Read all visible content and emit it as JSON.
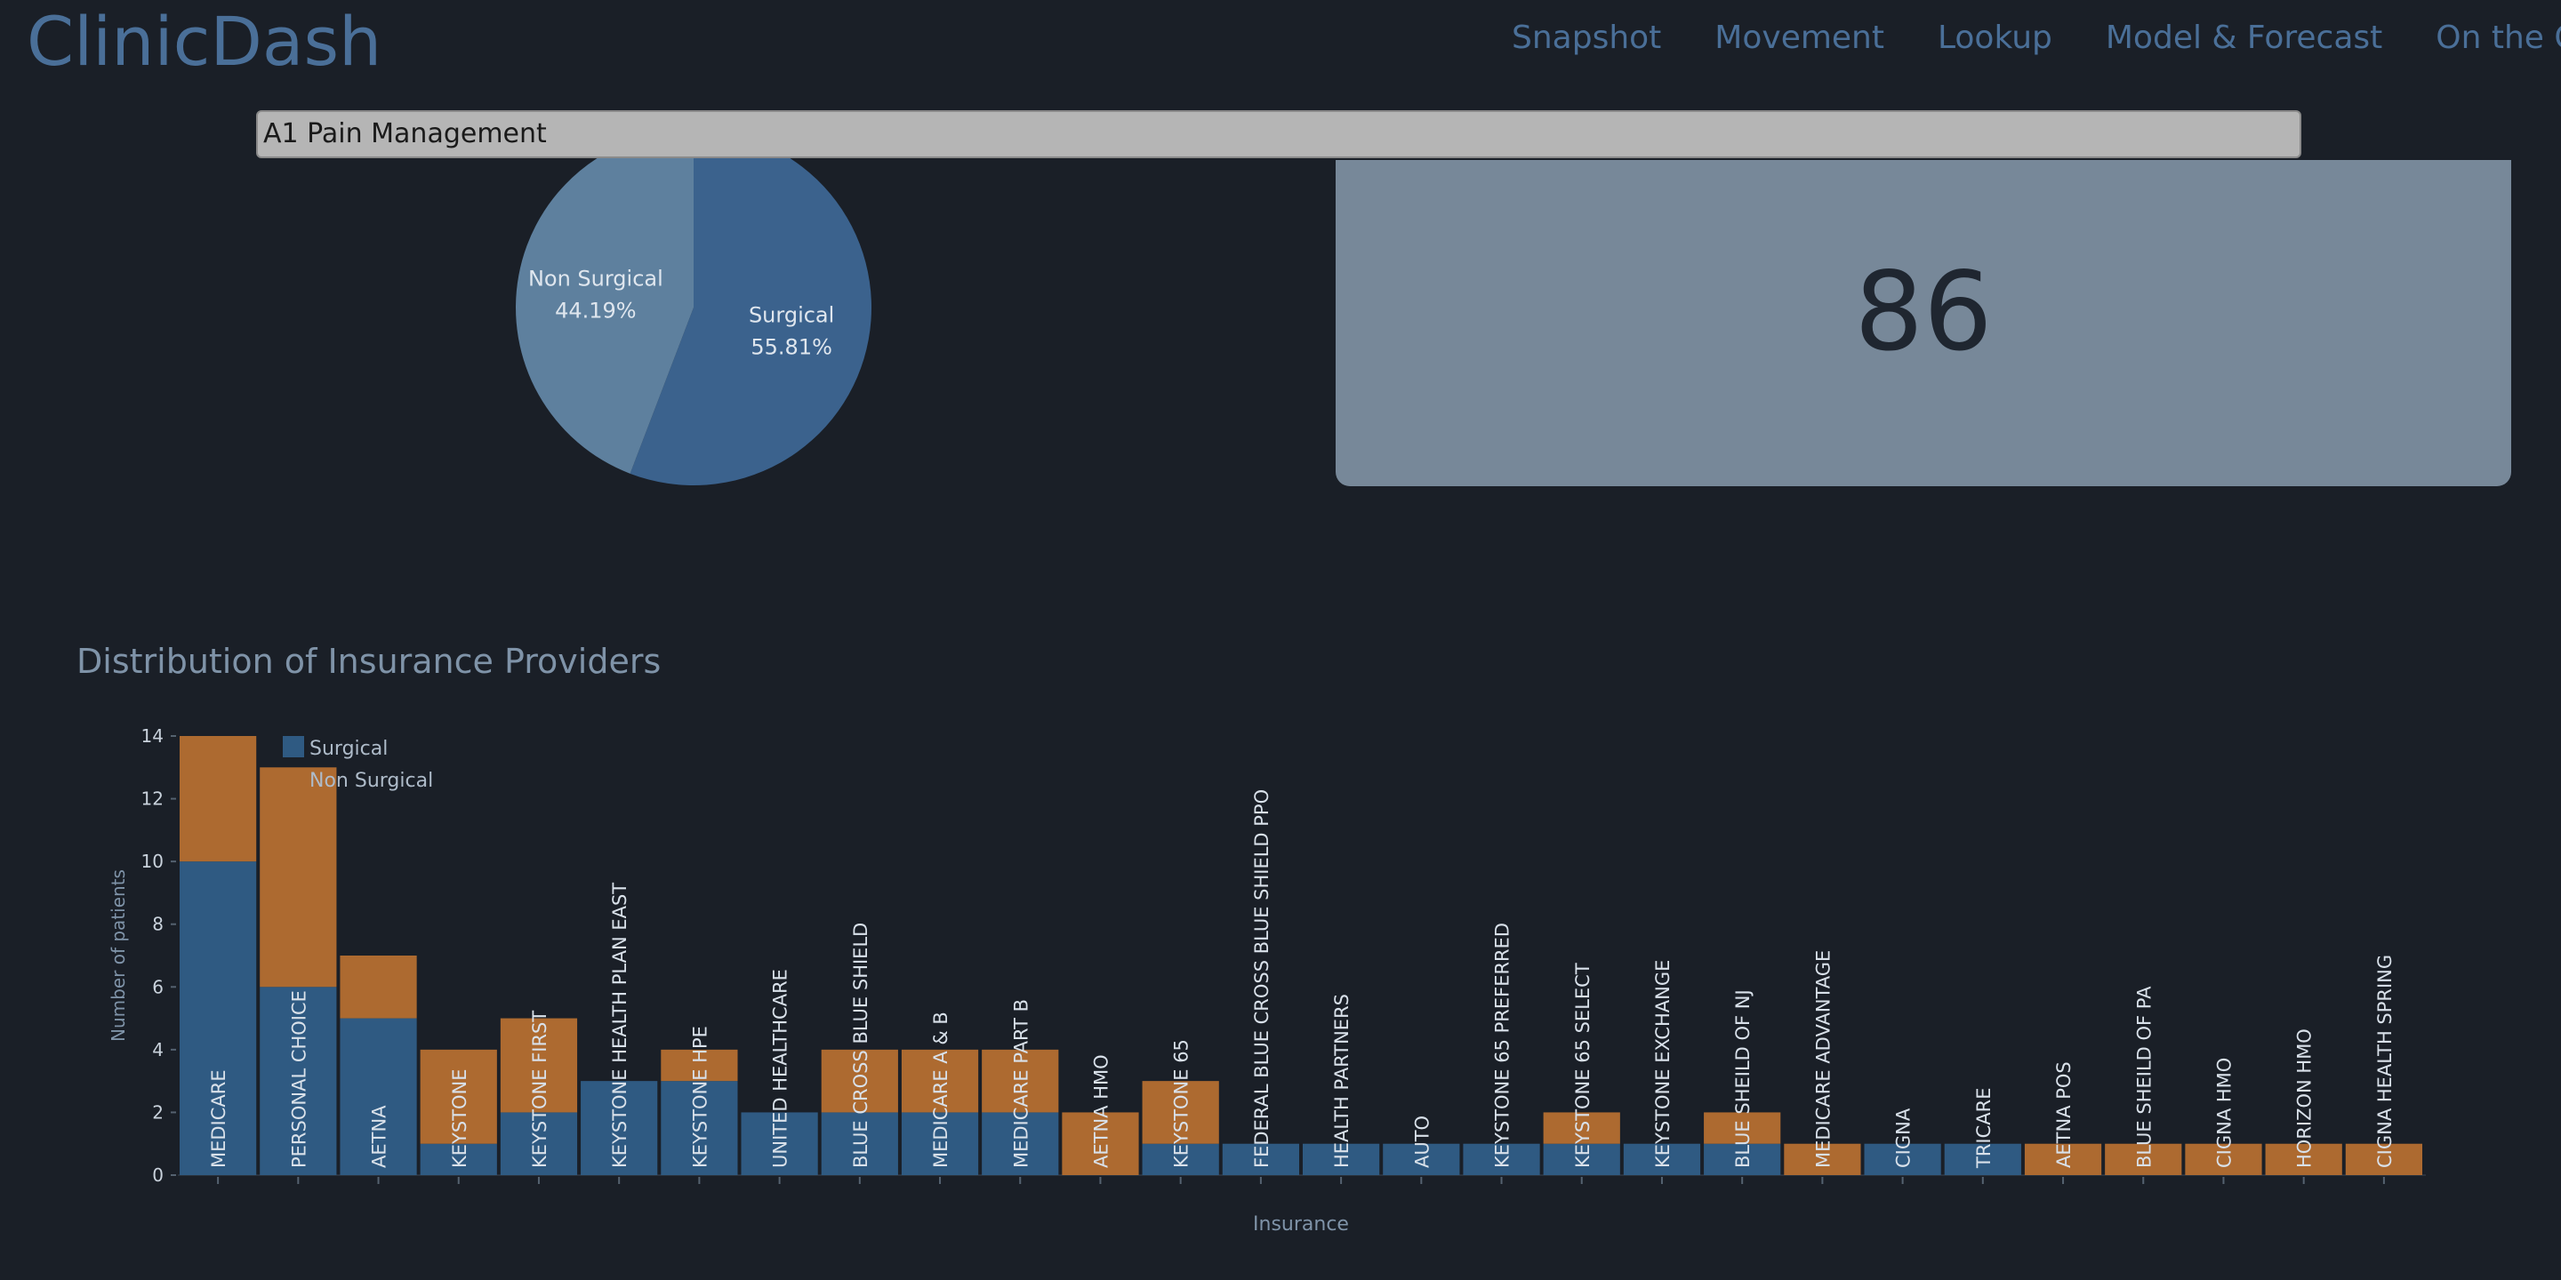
{
  "header": {
    "brand": "ClinicDash",
    "nav": [
      "Snapshot",
      "Movement",
      "Lookup",
      "Model & Forecast",
      "On the Go"
    ]
  },
  "clinic_select": {
    "value": "A1 Pain Management"
  },
  "kpi": {
    "value": "86"
  },
  "colors": {
    "surgical": "#2f5a82",
    "non_surgical": "#ad6a30",
    "pie_surgical": "#3b628d",
    "pie_non_surgical": "#5e809e"
  },
  "chart_data": [
    {
      "type": "pie",
      "labels": [
        "Surgical",
        "Non Surgical"
      ],
      "values": [
        55.81,
        44.19
      ],
      "text": [
        "55.81%",
        "44.19%"
      ]
    },
    {
      "type": "bar",
      "title": "Distribution of Insurance Providers",
      "xlabel": "Insurance",
      "ylabel": "Number of patients",
      "ylim": [
        0,
        14
      ],
      "yticks": [
        0,
        2,
        4,
        6,
        8,
        10,
        12,
        14
      ],
      "legend": [
        "Surgical",
        "Non Surgical"
      ],
      "legend_position": "top-left",
      "categories": [
        "MEDICARE",
        "PERSONAL CHOICE",
        "AETNA",
        "KEYSTONE",
        "KEYSTONE FIRST",
        "KEYSTONE HEALTH PLAN EAST",
        "KEYSTONE HPE",
        "UNITED HEALTHCARE",
        "BLUE CROSS BLUE SHIELD",
        "MEDICARE A & B",
        "MEDICARE PART B",
        "AETNA HMO",
        "KEYSTONE 65",
        "FEDERAL BLUE CROSS BLUE SHIELD PPO",
        "HEALTH PARTNERS",
        "AUTO",
        "KEYSTONE 65 PREFERRED",
        "KEYSTONE 65 SELECT",
        "KEYSTONE EXCHANGE",
        "BLUE SHEILD OF NJ",
        "MEDICARE ADVANTAGE",
        "CIGNA",
        "TRICARE",
        "AETNA POS",
        "BLUE SHEILD OF PA",
        "CIGNA HMO",
        "HORIZON HMO",
        "CIGNA HEALTH SPRING"
      ],
      "series": [
        {
          "name": "Surgical",
          "values": [
            10,
            6,
            5,
            1,
            2,
            3,
            3,
            2,
            2,
            2,
            2,
            0,
            1,
            1,
            1,
            1,
            1,
            1,
            1,
            1,
            0,
            1,
            1,
            0,
            0,
            0,
            0,
            0
          ]
        },
        {
          "name": "Non Surgical",
          "values": [
            4,
            7,
            2,
            3,
            3,
            0,
            1,
            0,
            2,
            2,
            2,
            2,
            2,
            0,
            0,
            0,
            0,
            1,
            0,
            1,
            1,
            0,
            0,
            1,
            1,
            1,
            1,
            1
          ]
        }
      ]
    }
  ]
}
